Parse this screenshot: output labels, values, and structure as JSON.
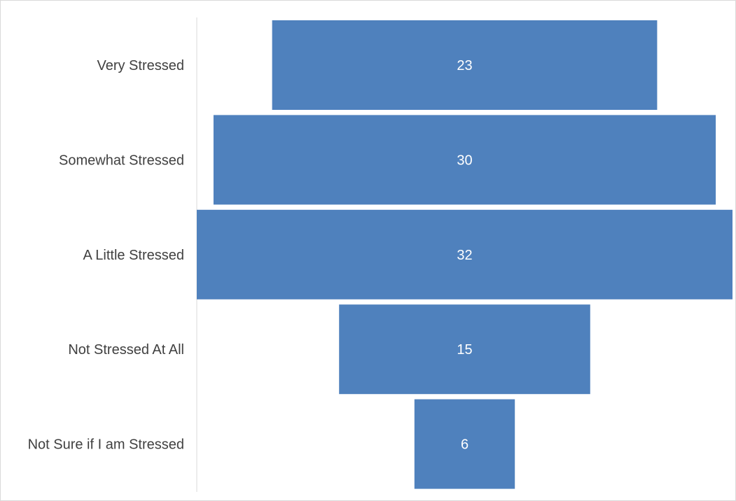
{
  "chart_data": {
    "type": "bar",
    "orientation": "horizontal",
    "style": "funnel",
    "categories": [
      "Very Stressed",
      "Somewhat Stressed",
      "A Little Stressed",
      "Not Stressed At All",
      "Not Sure if I am Stressed"
    ],
    "values": [
      23,
      30,
      32,
      15,
      6
    ],
    "title": "",
    "xlabel": "",
    "ylabel": "",
    "data_labels": true,
    "grid": false,
    "legend": "none",
    "bar_color": "#4f81bd",
    "label_color": "#ffffff",
    "axis_text_color": "#404040"
  }
}
